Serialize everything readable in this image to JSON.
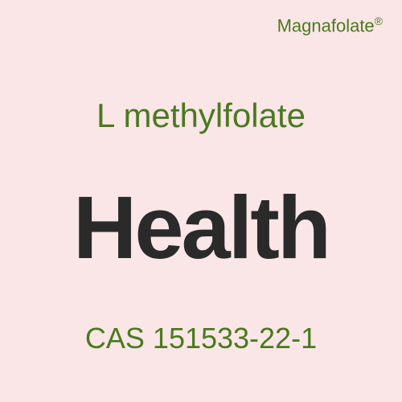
{
  "brand": {
    "name": "Magnafolate",
    "symbol": "®",
    "color": "#4a7a1f",
    "fontsize": 22
  },
  "title": {
    "text": "L methylfolate",
    "color": "#4a7a1f",
    "fontsize": 42
  },
  "main": {
    "text": "Health",
    "color": "#2a2a2a",
    "fontsize": 110,
    "fontweight": 700
  },
  "cas": {
    "text": "CAS 151533-22-1",
    "color": "#4a7a1f",
    "fontsize": 36
  },
  "background_color": "#fae6e6"
}
